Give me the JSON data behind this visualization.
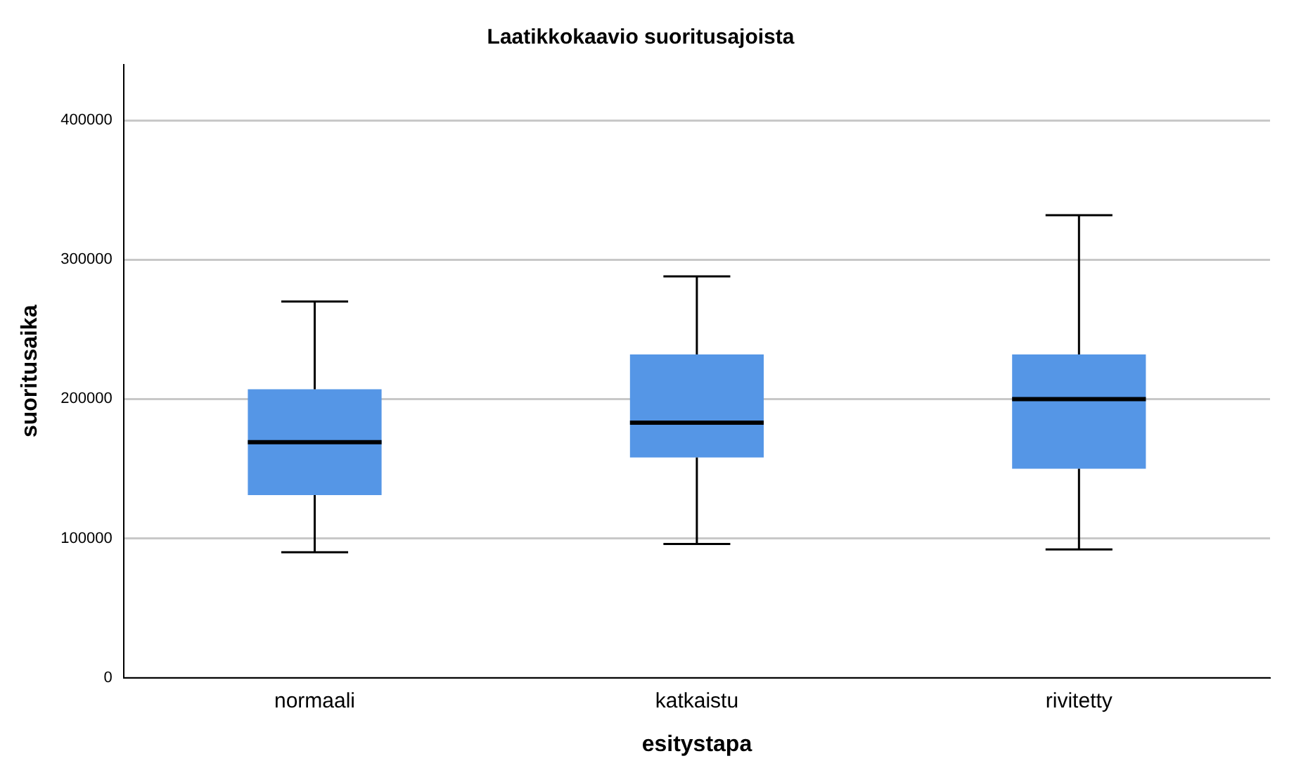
{
  "chart_data": {
    "type": "box",
    "title": "Laatikkokaavio suoritusajoista",
    "xlabel": "esitystapa",
    "ylabel": "suoritusaika",
    "categories": [
      "normaali",
      "katkaistu",
      "rivitetty"
    ],
    "color": "#5596e6",
    "boxes": [
      {
        "low": 90000,
        "q1": 131000,
        "median": 169000,
        "q3": 207000,
        "high": 270000
      },
      {
        "low": 96000,
        "q1": 158000,
        "median": 183000,
        "q3": 232000,
        "high": 288000
      },
      {
        "low": 92000,
        "q1": 150000,
        "median": 200000,
        "q3": 232000,
        "high": 332000
      }
    ],
    "ylim": [
      0,
      440000
    ],
    "yticks": [
      0,
      100000,
      200000,
      300000,
      400000
    ],
    "grid": "y",
    "legend": false
  }
}
